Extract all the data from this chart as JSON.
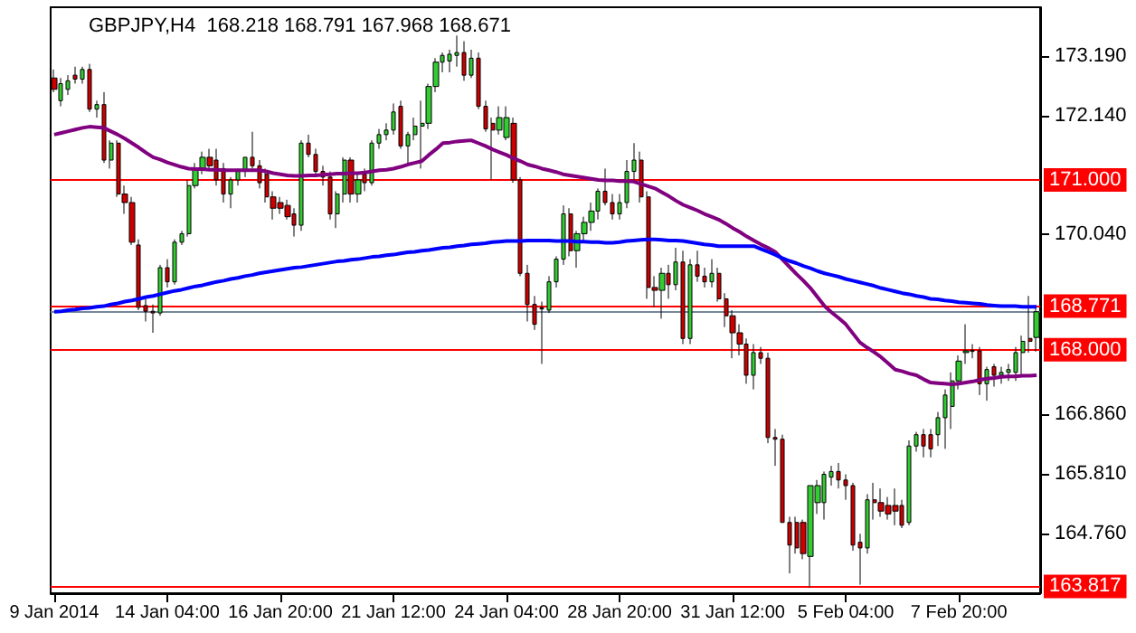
{
  "chart_data": {
    "type": "candlestick",
    "title": "GBPJPY,H4  168.218 168.791 167.968 168.671",
    "categories": [
      "9 Jan 2014",
      null,
      null,
      null,
      null,
      null,
      null,
      null,
      null,
      null,
      null,
      null,
      null,
      null,
      null,
      null,
      "14 Jan 04:00",
      null,
      null,
      null,
      null,
      null,
      null,
      null,
      null,
      null,
      null,
      null,
      null,
      null,
      null,
      null,
      "16 Jan 20:00",
      null,
      null,
      null,
      null,
      null,
      null,
      null,
      null,
      null,
      null,
      null,
      null,
      null,
      null,
      null,
      "21 Jan 12:00",
      null,
      null,
      null,
      null,
      null,
      null,
      null,
      null,
      null,
      null,
      null,
      null,
      null,
      null,
      null,
      "24 Jan 04:00",
      null,
      null,
      null,
      null,
      null,
      null,
      null,
      null,
      null,
      null,
      null,
      null,
      null,
      null,
      null,
      "28 Jan 20:00",
      null,
      null,
      null,
      null,
      null,
      null,
      null,
      null,
      null,
      null,
      null,
      null,
      null,
      null,
      null,
      "31 Jan 12:00",
      null,
      null,
      null,
      null,
      null,
      null,
      null,
      null,
      null,
      null,
      null,
      null,
      null,
      null,
      null,
      "5 Feb 04:00",
      null,
      null,
      null,
      null,
      null,
      null,
      null,
      null,
      null,
      null,
      null,
      null,
      null,
      null,
      null,
      "7 Feb 20:00",
      null,
      null,
      null,
      null,
      null,
      null,
      null,
      null,
      null,
      null,
      null
    ],
    "ohlc": [
      [
        172.8,
        172.95,
        172.55,
        172.6
      ],
      [
        172.4,
        172.8,
        172.3,
        172.7
      ],
      [
        172.6,
        172.85,
        172.5,
        172.75
      ],
      [
        172.85,
        173.0,
        172.7,
        172.78
      ],
      [
        172.78,
        173.0,
        172.7,
        172.95
      ],
      [
        172.95,
        173.05,
        172.2,
        172.25
      ],
      [
        172.25,
        172.4,
        172.1,
        172.33
      ],
      [
        172.33,
        172.55,
        171.3,
        171.35
      ],
      [
        171.35,
        171.7,
        171.2,
        171.65
      ],
      [
        171.65,
        171.7,
        170.7,
        170.75
      ],
      [
        170.75,
        170.9,
        170.4,
        170.6
      ],
      [
        170.6,
        170.7,
        169.85,
        169.9
      ],
      [
        169.85,
        169.95,
        168.7,
        168.75
      ],
      [
        168.78,
        168.9,
        168.5,
        168.68
      ],
      [
        168.68,
        168.8,
        168.3,
        168.65
      ],
      [
        168.65,
        169.5,
        168.6,
        169.45
      ],
      [
        169.45,
        169.6,
        169.1,
        169.2
      ],
      [
        169.2,
        169.95,
        169.15,
        169.9
      ],
      [
        169.9,
        170.1,
        169.85,
        170.05
      ],
      [
        170.05,
        171.0,
        170.0,
        170.9
      ],
      [
        170.9,
        171.3,
        170.85,
        171.2
      ],
      [
        171.2,
        171.5,
        171.1,
        171.4
      ],
      [
        171.4,
        171.55,
        171.2,
        171.25
      ],
      [
        171.35,
        171.55,
        170.9,
        171.0
      ],
      [
        171.2,
        171.3,
        170.6,
        170.75
      ],
      [
        170.75,
        171.05,
        170.5,
        171.0
      ],
      [
        171.0,
        171.2,
        170.9,
        171.15
      ],
      [
        171.15,
        171.4,
        171.05,
        171.4
      ],
      [
        171.4,
        171.85,
        171.2,
        171.25
      ],
      [
        171.25,
        171.35,
        170.85,
        170.95
      ],
      [
        171.1,
        171.2,
        170.6,
        170.7
      ],
      [
        170.7,
        170.8,
        170.3,
        170.5
      ],
      [
        170.6,
        170.7,
        170.4,
        170.5
      ],
      [
        170.55,
        170.65,
        170.3,
        170.35
      ],
      [
        170.4,
        170.5,
        170.0,
        170.2
      ],
      [
        170.2,
        171.7,
        170.1,
        171.65
      ],
      [
        171.65,
        171.8,
        171.4,
        171.45
      ],
      [
        171.45,
        171.55,
        171.1,
        171.15
      ],
      [
        171.15,
        171.25,
        170.9,
        171.05
      ],
      [
        171.05,
        171.15,
        170.3,
        170.4
      ],
      [
        170.4,
        170.8,
        170.15,
        170.75
      ],
      [
        170.75,
        171.4,
        170.6,
        171.35
      ],
      [
        171.35,
        171.4,
        170.6,
        170.75
      ],
      [
        170.75,
        171.1,
        170.6,
        171.0
      ],
      [
        171.1,
        171.2,
        170.8,
        170.95
      ],
      [
        170.95,
        171.7,
        170.9,
        171.65
      ],
      [
        171.65,
        171.9,
        171.55,
        171.8
      ],
      [
        171.8,
        172.0,
        171.7,
        171.88
      ],
      [
        171.88,
        172.35,
        171.8,
        172.2
      ],
      [
        172.3,
        172.4,
        171.55,
        171.6
      ],
      [
        171.6,
        171.85,
        171.3,
        171.8
      ],
      [
        171.8,
        172.1,
        171.7,
        171.95
      ],
      [
        171.95,
        172.4,
        171.2,
        172.0
      ],
      [
        172.0,
        172.7,
        171.9,
        172.65
      ],
      [
        172.65,
        173.15,
        172.55,
        173.08
      ],
      [
        173.08,
        173.25,
        172.9,
        173.2
      ],
      [
        173.1,
        173.3,
        172.9,
        173.22
      ],
      [
        173.2,
        173.55,
        173.0,
        173.25
      ],
      [
        173.25,
        173.45,
        172.75,
        172.85
      ],
      [
        172.85,
        173.3,
        172.8,
        173.15
      ],
      [
        173.15,
        173.25,
        172.25,
        172.3
      ],
      [
        172.3,
        172.4,
        171.85,
        171.9
      ],
      [
        172.0,
        172.1,
        171.0,
        171.88
      ],
      [
        171.88,
        172.3,
        171.8,
        172.1
      ],
      [
        171.75,
        172.3,
        171.7,
        172.1
      ],
      [
        172.0,
        172.1,
        170.95,
        171.0
      ],
      [
        171.0,
        171.05,
        169.3,
        169.35
      ],
      [
        169.35,
        169.5,
        168.5,
        168.8
      ],
      [
        168.8,
        168.95,
        168.35,
        168.45
      ],
      [
        168.72,
        168.85,
        167.75,
        168.74
      ],
      [
        168.7,
        169.3,
        168.65,
        169.2
      ],
      [
        169.2,
        169.65,
        169.1,
        169.6
      ],
      [
        169.6,
        170.55,
        169.5,
        170.4
      ],
      [
        170.4,
        170.5,
        169.65,
        169.75
      ],
      [
        169.75,
        170.1,
        169.45,
        170.05
      ],
      [
        170.05,
        170.35,
        169.9,
        170.25
      ],
      [
        170.25,
        170.6,
        170.1,
        170.45
      ],
      [
        170.45,
        170.85,
        170.3,
        170.8
      ],
      [
        170.8,
        171.2,
        170.55,
        170.6
      ],
      [
        170.6,
        170.75,
        170.3,
        170.4
      ],
      [
        170.4,
        170.75,
        170.3,
        170.6
      ],
      [
        170.6,
        171.35,
        170.5,
        171.15
      ],
      [
        171.15,
        171.65,
        171.0,
        171.35
      ],
      [
        171.35,
        171.5,
        170.6,
        170.7
      ],
      [
        170.7,
        170.8,
        168.9,
        169.1
      ],
      [
        169.1,
        169.3,
        168.75,
        169.05
      ],
      [
        169.05,
        169.45,
        168.55,
        169.35
      ],
      [
        169.35,
        169.5,
        168.9,
        169.15
      ],
      [
        169.15,
        169.8,
        169.05,
        169.55
      ],
      [
        169.55,
        169.75,
        168.1,
        168.2
      ],
      [
        168.2,
        169.6,
        168.1,
        169.5
      ],
      [
        169.5,
        169.75,
        169.2,
        169.3
      ],
      [
        169.3,
        169.45,
        169.1,
        169.2
      ],
      [
        169.2,
        169.6,
        169.1,
        169.35
      ],
      [
        169.35,
        169.45,
        168.85,
        168.9
      ],
      [
        168.9,
        169.0,
        168.4,
        168.6
      ],
      [
        168.6,
        168.7,
        167.85,
        168.3
      ],
      [
        168.3,
        168.45,
        167.9,
        168.1
      ],
      [
        168.1,
        168.2,
        167.4,
        167.55
      ],
      [
        167.55,
        168.1,
        167.3,
        167.95
      ],
      [
        167.95,
        168.05,
        167.75,
        167.85
      ],
      [
        167.85,
        167.95,
        166.35,
        166.45
      ],
      [
        166.45,
        166.6,
        165.95,
        166.42
      ],
      [
        166.42,
        166.5,
        164.95,
        164.95
      ],
      [
        164.95,
        165.05,
        164.05,
        164.55
      ],
      [
        164.95,
        165.05,
        164.4,
        164.5
      ],
      [
        164.95,
        165.0,
        164.3,
        164.4
      ],
      [
        164.35,
        165.6,
        163.8,
        165.6
      ],
      [
        165.3,
        165.7,
        165.1,
        165.6
      ],
      [
        165.3,
        165.85,
        165.0,
        165.8
      ],
      [
        165.75,
        165.95,
        165.6,
        165.85
      ],
      [
        165.85,
        166.0,
        165.55,
        165.7
      ],
      [
        165.7,
        165.8,
        165.35,
        165.6
      ],
      [
        165.6,
        165.65,
        164.45,
        164.55
      ],
      [
        164.6,
        164.75,
        163.85,
        164.5
      ],
      [
        164.5,
        165.45,
        164.4,
        165.35
      ],
      [
        165.35,
        165.65,
        165.0,
        165.3
      ],
      [
        165.3,
        165.55,
        165.05,
        165.15
      ],
      [
        165.25,
        165.4,
        165.0,
        165.1
      ],
      [
        165.25,
        165.55,
        164.9,
        165.15
      ],
      [
        165.25,
        165.35,
        164.85,
        164.9
      ],
      [
        164.95,
        166.4,
        164.9,
        166.3
      ],
      [
        166.3,
        166.55,
        166.2,
        166.5
      ],
      [
        166.5,
        166.6,
        166.1,
        166.3
      ],
      [
        166.5,
        166.6,
        166.1,
        166.25
      ],
      [
        166.5,
        166.9,
        166.3,
        166.8
      ],
      [
        166.8,
        167.3,
        166.25,
        167.2
      ],
      [
        167.0,
        167.6,
        166.6,
        167.45
      ],
      [
        167.45,
        167.9,
        167.3,
        167.8
      ],
      [
        167.95,
        168.45,
        167.75,
        167.98
      ],
      [
        167.97,
        168.1,
        167.85,
        167.99
      ],
      [
        167.98,
        168.05,
        167.2,
        167.4
      ],
      [
        167.4,
        167.7,
        167.1,
        167.65
      ],
      [
        167.7,
        167.75,
        167.35,
        167.55
      ],
      [
        167.55,
        167.7,
        167.4,
        167.6
      ],
      [
        167.6,
        167.75,
        167.45,
        167.65
      ],
      [
        167.6,
        168.05,
        167.45,
        167.95
      ],
      [
        167.95,
        168.25,
        167.55,
        168.15
      ],
      [
        168.2,
        168.95,
        167.95,
        168.15
      ],
      [
        168.218,
        168.791,
        167.968,
        168.671
      ]
    ],
    "colors": [
      "#cc0000",
      "#33cc33",
      "#33cc33",
      "#cc0000",
      "#33cc33",
      "#cc0000",
      "#33cc33",
      "#cc0000",
      "#33cc33",
      "#cc0000",
      "#cc0000",
      "#cc0000",
      "#cc0000",
      "#cc0000",
      "#cc0000",
      "#33cc33",
      "#cc0000",
      "#33cc33",
      "#33cc33",
      "#33cc33",
      "#33cc33",
      "#33cc33",
      "#cc0000",
      "#cc0000",
      "#cc0000",
      "#33cc33",
      "#33cc33",
      "#33cc33",
      "#cc0000",
      "#cc0000",
      "#cc0000",
      "#cc0000",
      "#cc0000",
      "#cc0000",
      "#cc0000",
      "#33cc33",
      "#cc0000",
      "#cc0000",
      "#cc0000",
      "#cc0000",
      "#33cc33",
      "#33cc33",
      "#cc0000",
      "#33cc33",
      "#cc0000",
      "#33cc33",
      "#33cc33",
      "#33cc33",
      "#33cc33",
      "#cc0000",
      "#33cc33",
      "#33cc33",
      "#33cc33",
      "#33cc33",
      "#33cc33",
      "#33cc33",
      "#33cc33",
      "#33cc33",
      "#cc0000",
      "#33cc33",
      "#cc0000",
      "#cc0000",
      "#cc0000",
      "#33cc33",
      "#33cc33",
      "#cc0000",
      "#cc0000",
      "#cc0000",
      "#cc0000",
      "#33cc33",
      "#33cc33",
      "#33cc33",
      "#33cc33",
      "#cc0000",
      "#33cc33",
      "#33cc33",
      "#33cc33",
      "#33cc33",
      "#cc0000",
      "#cc0000",
      "#33cc33",
      "#33cc33",
      "#33cc33",
      "#cc0000",
      "#cc0000",
      "#cc0000",
      "#33cc33",
      "#cc0000",
      "#33cc33",
      "#cc0000",
      "#33cc33",
      "#cc0000",
      "#cc0000",
      "#33cc33",
      "#cc0000",
      "#cc0000",
      "#cc0000",
      "#cc0000",
      "#cc0000",
      "#33cc33",
      "#cc0000",
      "#cc0000",
      "#cc0000",
      "#cc0000",
      "#cc0000",
      "#cc0000",
      "#cc0000",
      "#33cc33",
      "#33cc33",
      "#33cc33",
      "#33cc33",
      "#cc0000",
      "#cc0000",
      "#cc0000",
      "#cc0000",
      "#33cc33",
      "#cc0000",
      "#cc0000",
      "#cc0000",
      "#cc0000",
      "#cc0000",
      "#33cc33",
      "#33cc33",
      "#cc0000",
      "#cc0000",
      "#33cc33",
      "#33cc33",
      "#33cc33",
      "#33cc33",
      "#33cc33",
      "#33cc33",
      "#cc0000",
      "#33cc33",
      "#cc0000",
      "#33cc33",
      "#33cc33",
      "#33cc33",
      "#33cc33",
      "#cc0000",
      "#33cc33"
    ],
    "series": [
      {
        "type": "line",
        "color": "#800080",
        "values": [
          171.8,
          171.83,
          171.86,
          171.89,
          171.92,
          171.94,
          171.93,
          171.92,
          171.86,
          171.8,
          171.73,
          171.65,
          171.57,
          171.48,
          171.4,
          171.36,
          171.31,
          171.27,
          171.23,
          171.2,
          171.19,
          171.19,
          171.18,
          171.18,
          171.17,
          171.17,
          171.17,
          171.17,
          171.17,
          171.17,
          171.15,
          171.12,
          171.1,
          171.08,
          171.07,
          171.07,
          171.08,
          171.08,
          171.09,
          171.1,
          171.11,
          171.11,
          171.12,
          171.12,
          171.13,
          171.15,
          171.17,
          171.18,
          171.2,
          171.23,
          171.27,
          171.3,
          171.33,
          171.44,
          171.54,
          171.65,
          171.66,
          171.68,
          171.69,
          171.7,
          171.65,
          171.6,
          171.54,
          171.49,
          171.44,
          171.38,
          171.33,
          171.27,
          171.24,
          171.2,
          171.17,
          171.14,
          171.1,
          171.08,
          171.06,
          171.04,
          171.02,
          171.0,
          170.99,
          170.99,
          170.98,
          170.98,
          170.97,
          170.93,
          170.89,
          170.85,
          170.78,
          170.71,
          170.63,
          170.56,
          170.51,
          170.46,
          170.4,
          170.35,
          170.3,
          170.23,
          170.15,
          170.08,
          170.0,
          169.93,
          169.86,
          169.8,
          169.73,
          169.6,
          169.47,
          169.34,
          169.22,
          169.09,
          168.93,
          168.77,
          168.66,
          168.56,
          168.45,
          168.29,
          168.13,
          168.04,
          167.96,
          167.87,
          167.76,
          167.65,
          167.62,
          167.58,
          167.55,
          167.48,
          167.42,
          167.41,
          167.4,
          167.39,
          167.4,
          167.42,
          167.44,
          167.47,
          167.49,
          167.5,
          167.52,
          167.53,
          167.53,
          167.54,
          167.54,
          167.55
        ]
      },
      {
        "type": "line",
        "color": "#0000ff",
        "values": [
          168.67,
          168.68,
          168.7,
          168.71,
          168.73,
          168.74,
          168.76,
          168.77,
          168.8,
          168.82,
          168.85,
          168.87,
          168.9,
          168.93,
          168.95,
          168.98,
          169.01,
          169.04,
          169.06,
          169.09,
          169.12,
          169.14,
          169.17,
          169.2,
          169.22,
          169.25,
          169.27,
          169.3,
          169.32,
          169.35,
          169.37,
          169.39,
          169.41,
          169.43,
          169.45,
          169.46,
          169.48,
          169.5,
          169.52,
          169.54,
          169.56,
          169.57,
          169.59,
          169.6,
          169.62,
          169.64,
          169.65,
          169.67,
          169.68,
          169.7,
          169.72,
          169.73,
          169.75,
          169.76,
          169.78,
          169.8,
          169.81,
          169.83,
          169.84,
          169.86,
          169.87,
          169.88,
          169.9,
          169.91,
          169.92,
          169.92,
          169.92,
          169.93,
          169.93,
          169.93,
          169.93,
          169.92,
          169.92,
          169.92,
          169.91,
          169.91,
          169.9,
          169.9,
          169.89,
          169.89,
          169.9,
          169.92,
          169.93,
          169.94,
          169.95,
          169.95,
          169.94,
          169.93,
          169.93,
          169.92,
          169.9,
          169.88,
          169.86,
          169.85,
          169.83,
          169.83,
          169.83,
          169.83,
          169.83,
          169.83,
          169.78,
          169.73,
          169.68,
          169.62,
          169.57,
          169.53,
          169.48,
          169.44,
          169.39,
          169.35,
          169.32,
          169.29,
          169.25,
          169.22,
          169.19,
          169.16,
          169.13,
          169.09,
          169.06,
          169.03,
          169.0,
          168.98,
          168.95,
          168.93,
          168.9,
          168.89,
          168.87,
          168.86,
          168.84,
          168.83,
          168.82,
          168.81,
          168.79,
          168.78,
          168.77,
          168.77,
          168.77,
          168.76,
          168.76,
          168.76
        ]
      }
    ],
    "ylim": [
      163.7,
      174.05
    ],
    "yticks": [
      {
        "value": 164.76,
        "label": "164.760"
      },
      {
        "value": 165.81,
        "label": "165.810"
      },
      {
        "value": 166.86,
        "label": "166.860"
      },
      {
        "value": 170.04,
        "label": "170.040"
      },
      {
        "value": 172.14,
        "label": "172.140"
      },
      {
        "value": 173.19,
        "label": "173.190"
      }
    ],
    "ref_lines": [
      {
        "axis": "y",
        "value": 171.0,
        "label": "171.000",
        "color": "#ff0000"
      },
      {
        "axis": "y",
        "value": 168.771,
        "label": "168.771",
        "color": "#ff0000"
      },
      {
        "axis": "y",
        "value": 168.671,
        "color": "#778899"
      },
      {
        "axis": "y",
        "value": 168.0,
        "label": "168.000",
        "color": "#ff0000"
      },
      {
        "axis": "y",
        "value": 163.817,
        "label": "163.817",
        "color": "#ff0000"
      }
    ],
    "grid": false
  }
}
